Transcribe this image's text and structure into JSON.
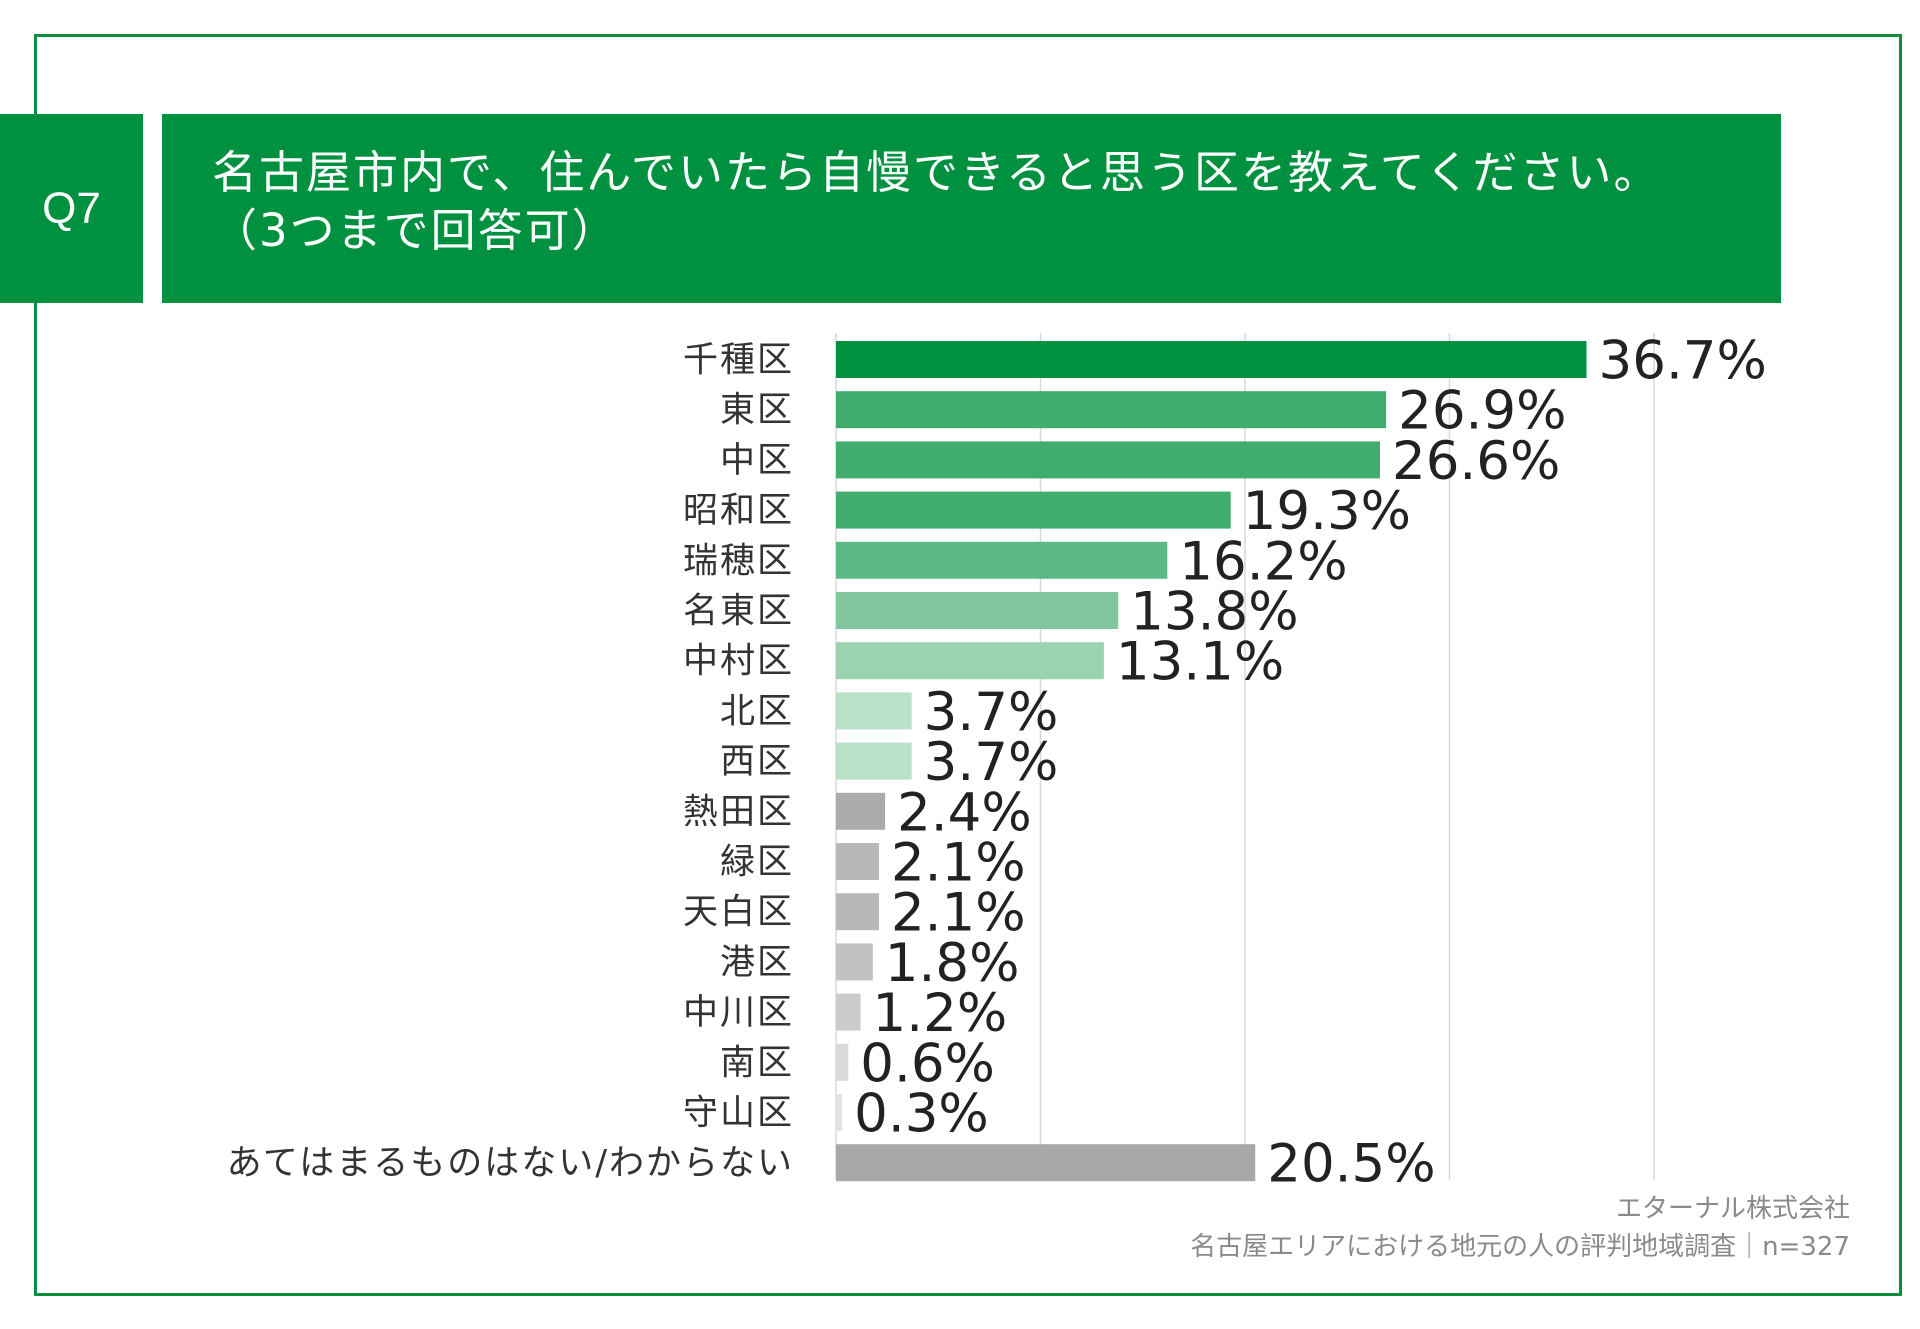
{
  "question": {
    "number": "Q7",
    "title_line1": "名古屋市内で、住んでいたら自慢できると思う区を教えてください。",
    "title_line2": "（3つまで回答可）"
  },
  "footer": {
    "company": "エターナル株式会社",
    "survey": "名古屋エリアにおける地元の人の評判地域調査｜n=327"
  },
  "colors": {
    "frame": "#0b8f3f",
    "header_bg": "#009140",
    "grid": "#d9d9d9"
  },
  "chart_data": {
    "type": "bar",
    "orientation": "horizontal",
    "title": "名古屋市内で、住んでいたら自慢できると思う区を教えてください。（3つまで回答可）",
    "xlim": [
      0,
      40
    ],
    "grid": true,
    "categories": [
      "千種区",
      "東区",
      "中区",
      "昭和区",
      "瑞穂区",
      "名東区",
      "中村区",
      "北区",
      "西区",
      "熱田区",
      "緑区",
      "天白区",
      "港区",
      "中川区",
      "南区",
      "守山区",
      "あてはまるものはない/わからない"
    ],
    "values": [
      36.7,
      26.9,
      26.6,
      19.3,
      16.2,
      13.8,
      13.1,
      3.7,
      3.7,
      2.4,
      2.1,
      2.1,
      1.8,
      1.2,
      0.6,
      0.3,
      20.5
    ],
    "value_labels": [
      "36.7%",
      "26.9%",
      "26.6%",
      "19.3%",
      "16.2%",
      "13.8%",
      "13.1%",
      "3.7%",
      "3.7%",
      "2.4%",
      "2.1%",
      "2.1%",
      "1.8%",
      "1.2%",
      "0.6%",
      "0.3%",
      "20.5%"
    ],
    "bar_colors": [
      "#00913f",
      "#40ad6e",
      "#40ad6e",
      "#40ad6e",
      "#5cb985",
      "#80c79d",
      "#99d3b0",
      "#b8e1c8",
      "#b8e1c8",
      "#ababab",
      "#b8b8b8",
      "#b8b8b8",
      "#c2c2c2",
      "#cbcbcb",
      "#d9d9d9",
      "#e3e3e3",
      "#a8a8a8"
    ]
  }
}
